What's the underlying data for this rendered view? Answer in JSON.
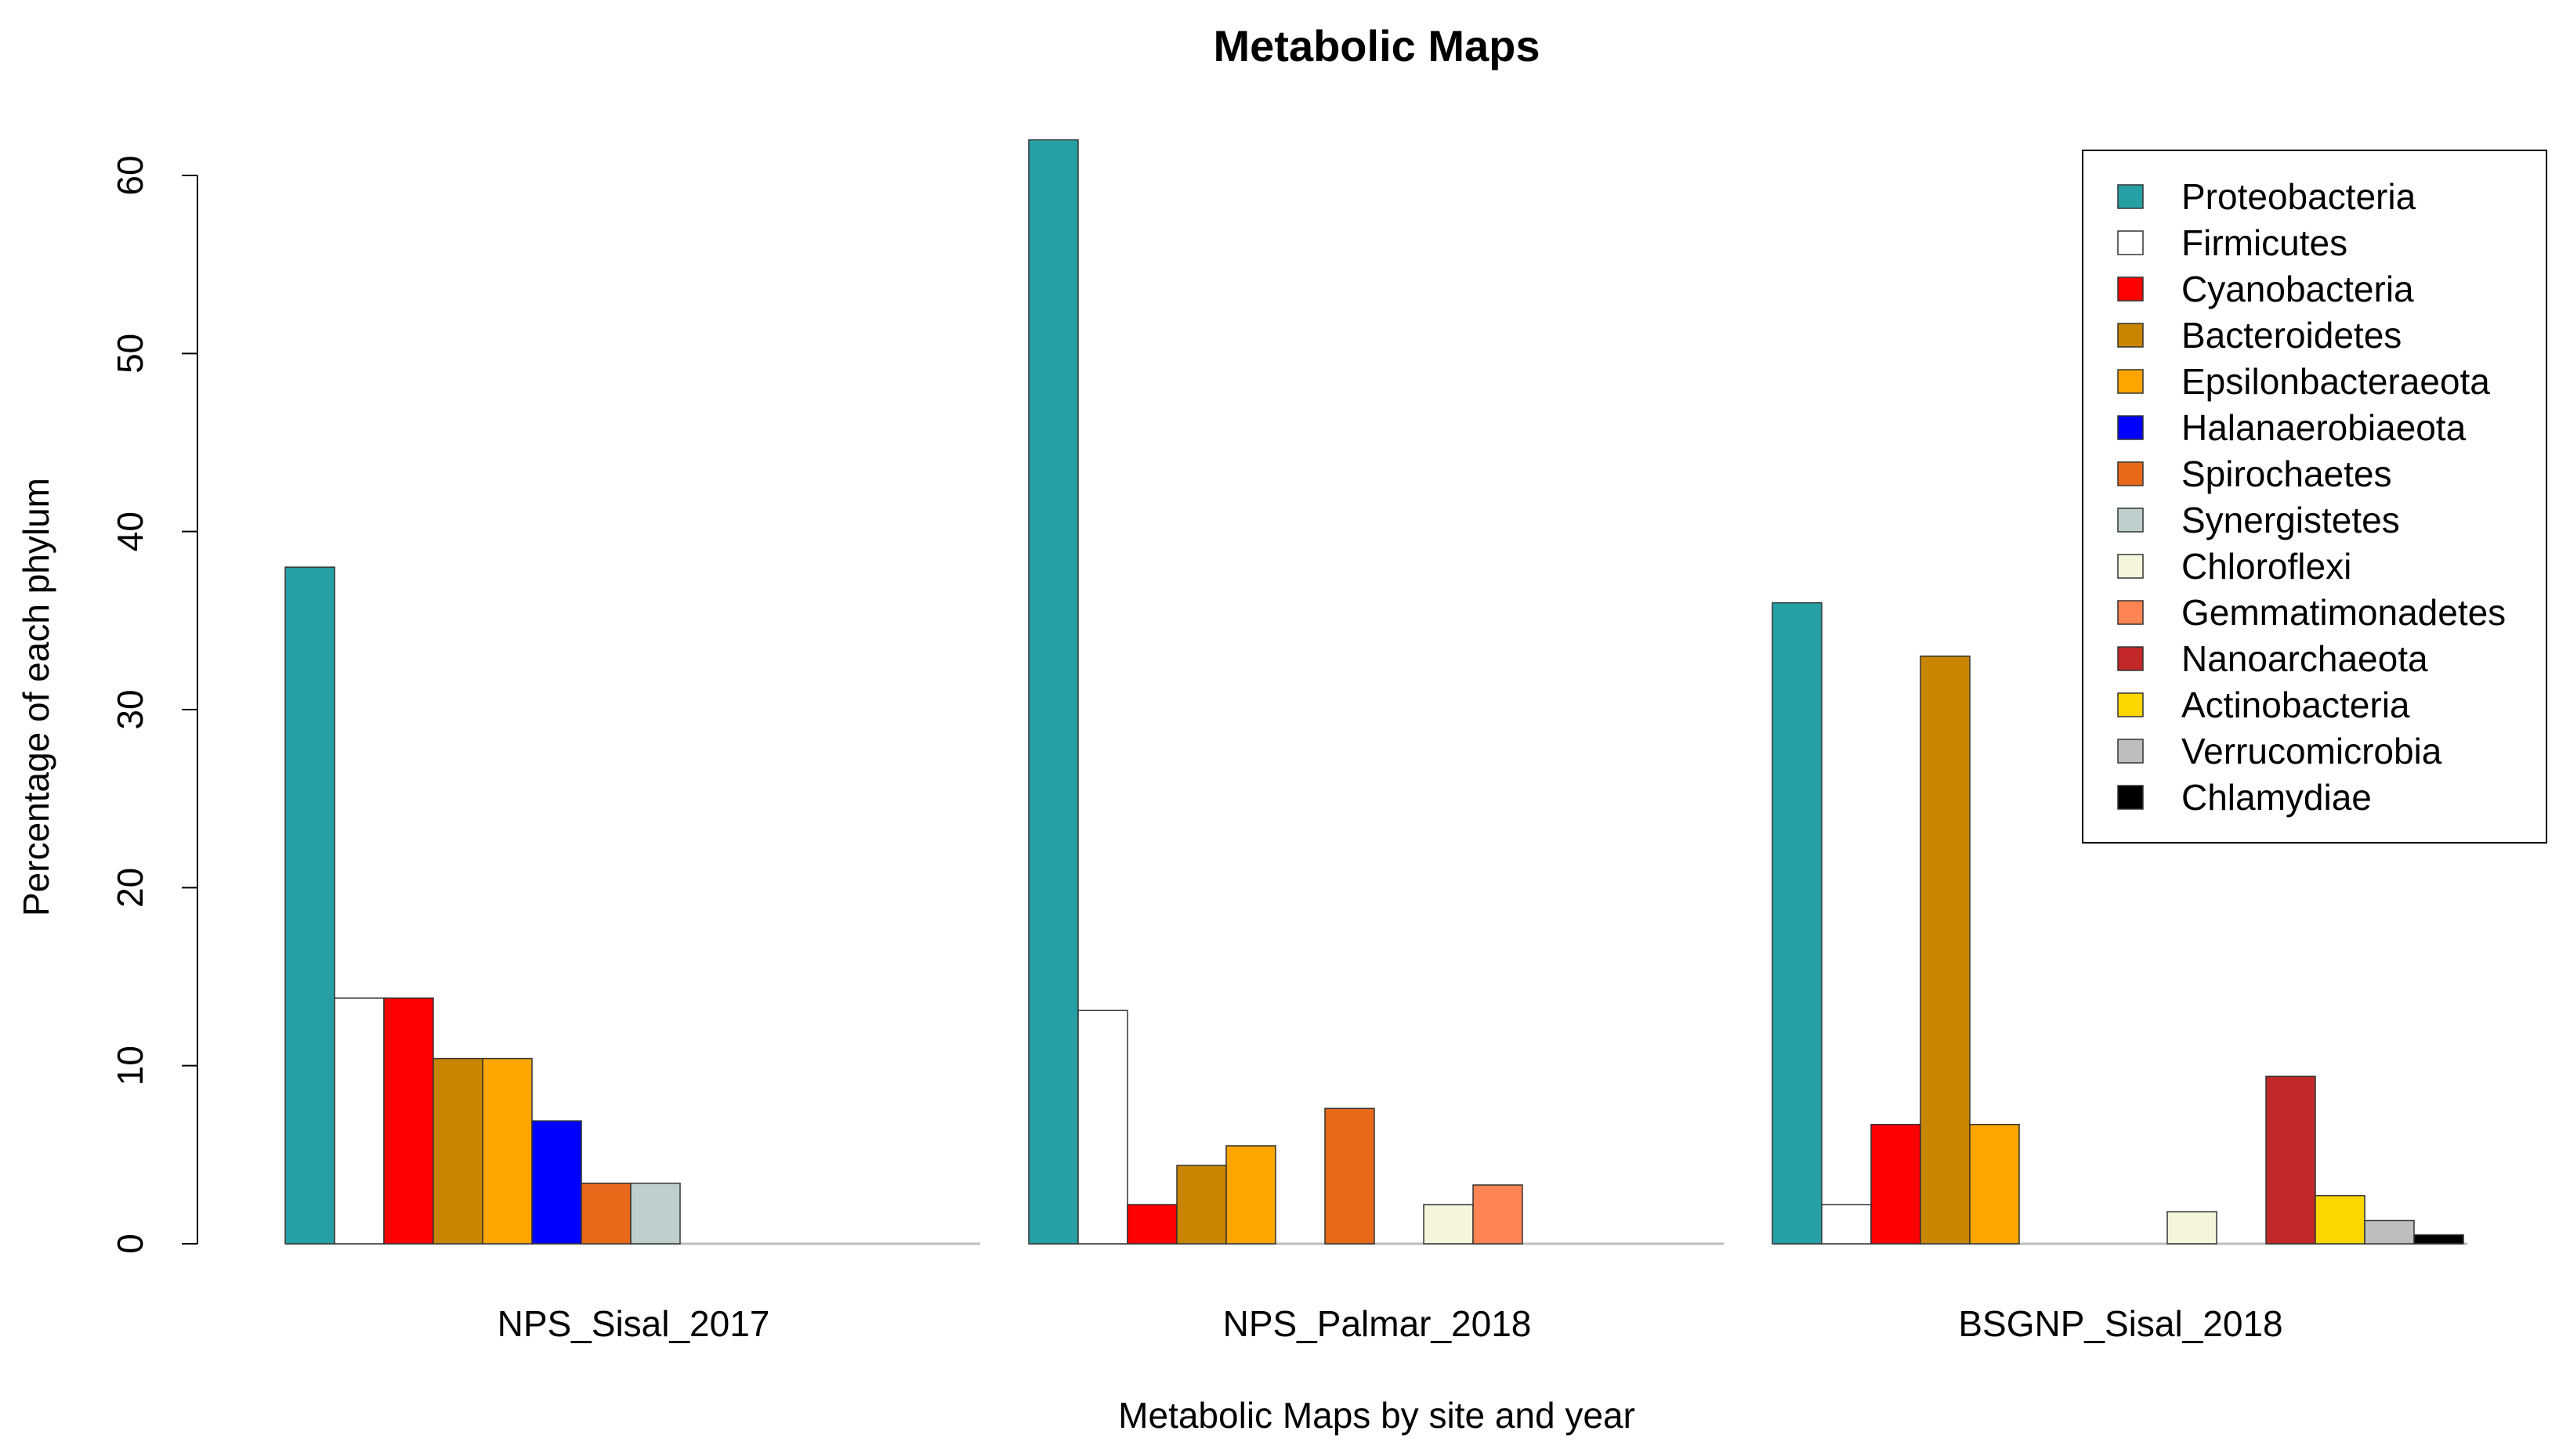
{
  "chart_data": {
    "type": "bar",
    "title": "Metabolic Maps",
    "xlabel": "Metabolic Maps by site and year",
    "ylabel": "Percentage of each phylum",
    "ylim": [
      0,
      62
    ],
    "yticks": [
      0,
      10,
      20,
      30,
      40,
      50,
      60
    ],
    "ytick_labels": [
      "0",
      "10",
      "20",
      "30",
      "40",
      "50",
      "60"
    ],
    "legend_position": "top-right",
    "categories": [
      "NPS_Sisal_2017",
      "NPS_Palmar_2018",
      "BSGNP_Sisal_2018"
    ],
    "series": [
      {
        "name": "Proteobacteria",
        "color": "#26a0a5",
        "values": [
          38,
          62,
          36
        ]
      },
      {
        "name": "Firmicutes",
        "color": "#ffffff",
        "values": [
          13.8,
          13.1,
          2.2
        ]
      },
      {
        "name": "Cyanobacteria",
        "color": "#ff0000",
        "values": [
          13.8,
          2.2,
          6.7
        ]
      },
      {
        "name": "Bacteroidetes",
        "color": "#c98500",
        "values": [
          10.4,
          4.4,
          33
        ]
      },
      {
        "name": "Epsilonbacteraeota",
        "color": "#ffa500",
        "values": [
          10.4,
          5.5,
          6.7
        ]
      },
      {
        "name": "Halanaerobiaeota",
        "color": "#0000ff",
        "values": [
          6.9,
          0,
          0
        ]
      },
      {
        "name": "Spirochaetes",
        "color": "#e8691a",
        "values": [
          3.4,
          7.6,
          0
        ]
      },
      {
        "name": "Synergistetes",
        "color": "#bfcfcf",
        "values": [
          3.4,
          0,
          0
        ]
      },
      {
        "name": "Chloroflexi",
        "color": "#f5f5dc",
        "values": [
          0,
          2.2,
          1.8
        ]
      },
      {
        "name": "Gemmatimonadetes",
        "color": "#ff8454",
        "values": [
          0,
          3.3,
          0
        ]
      },
      {
        "name": "Nanoarchaeota",
        "color": "#c22828",
        "values": [
          0,
          0,
          9.4
        ]
      },
      {
        "name": "Actinobacteria",
        "color": "#ffd700",
        "values": [
          0,
          0,
          2.7
        ]
      },
      {
        "name": "Verrucomicrobia",
        "color": "#bebebe",
        "values": [
          0,
          0,
          1.3
        ]
      },
      {
        "name": "Chlamydiae",
        "color": "#000000",
        "values": [
          0,
          0,
          0.5
        ]
      }
    ]
  }
}
